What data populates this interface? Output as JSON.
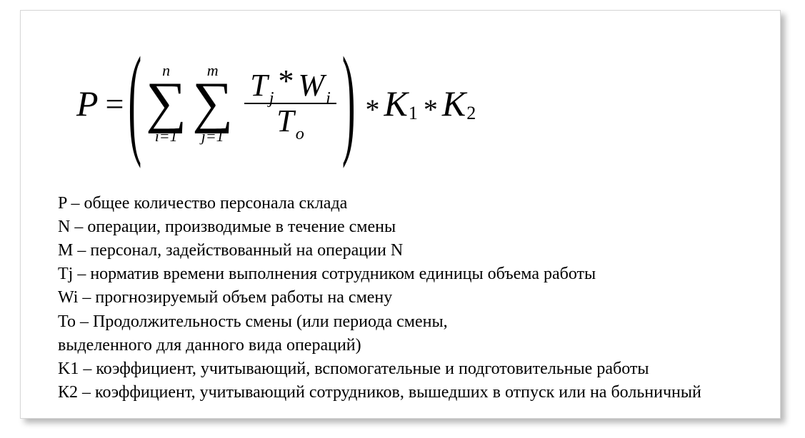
{
  "formula": {
    "lhs": "P",
    "equals": "=",
    "lparen": "(",
    "rparen": ")",
    "sigma1": {
      "symbol": "∑",
      "top": "n",
      "bottom": "i=1"
    },
    "sigma2": {
      "symbol": "∑",
      "top": "m",
      "bottom": "j=1"
    },
    "fraction": {
      "top_T": "T",
      "top_Tsub": "j",
      "top_star": "*",
      "top_W": "W",
      "top_Wsub": "i",
      "bot_T": "T",
      "bot_Tsub": "o"
    },
    "tail": {
      "star1": "*",
      "K1": "K",
      "K1sub": "1",
      "star2": "*",
      "K2": "K",
      "K2sub": "2"
    }
  },
  "definitions": {
    "l1": "P – общее количество персонала склада",
    "l2": "N – операции, производимые в течение смены",
    "l3": "M – персонал, задействованный на операции N",
    "l4": "Tj – норматив времени выполнения сотрудником единицы объема работы",
    "l5": "Wi – прогнозируемый объем работы на смену",
    "l6": "To – Продолжительность смены (или периода смены,",
    "l7": "выделенного для данного вида операций)",
    "l8": "K1 – коэффициент, учитывающий, вспомогательные и подготовительные работы",
    "l9": "К2 – коэффициент, учитывающий сотрудников, вышедших в отпуск или на больничный"
  },
  "style": {
    "background_color": "#ffffff",
    "card_border_color": "#d6d6d6",
    "shadow_color": "rgba(0,0,0,0.28)",
    "text_color": "#000000",
    "formula_fontsize_main": 50,
    "formula_fontsize_sigma": 80,
    "definitions_fontsize": 24,
    "font_family": "Times New Roman"
  }
}
